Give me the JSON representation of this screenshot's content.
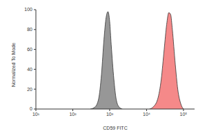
{
  "chart_data": {
    "type": "area",
    "xlabel": "CD59 FITC",
    "ylabel": "Normalized To Mode",
    "log": "x",
    "xlim": [
      10,
      200000
    ],
    "xticks": [
      {
        "value": 10,
        "label": "10¹"
      },
      {
        "value": 100,
        "label": "10²"
      },
      {
        "value": 1000,
        "label": "10³"
      },
      {
        "value": 10000,
        "label": "10⁴"
      },
      {
        "value": 100000,
        "label": "10⁵"
      }
    ],
    "ylim": [
      0,
      100
    ],
    "yticks": [
      0,
      20,
      40,
      60,
      80,
      100
    ],
    "grid": false,
    "series": [
      {
        "color": "#8c8c8c",
        "x": [
          300,
          400,
          500,
          600,
          700,
          800,
          900,
          1000,
          1100,
          1300,
          1500,
          1800,
          2200
        ],
        "values": [
          0,
          2,
          10,
          35,
          70,
          92,
          98,
          88,
          65,
          30,
          10,
          2,
          0
        ]
      },
      {
        "color": "#f47c7c",
        "x": [
          12000,
          15000,
          20000,
          25000,
          30000,
          35000,
          40000,
          45000,
          50000,
          60000,
          70000,
          85000,
          100000
        ],
        "values": [
          0,
          2,
          10,
          30,
          60,
          85,
          97,
          95,
          80,
          45,
          20,
          5,
          0
        ]
      }
    ]
  }
}
